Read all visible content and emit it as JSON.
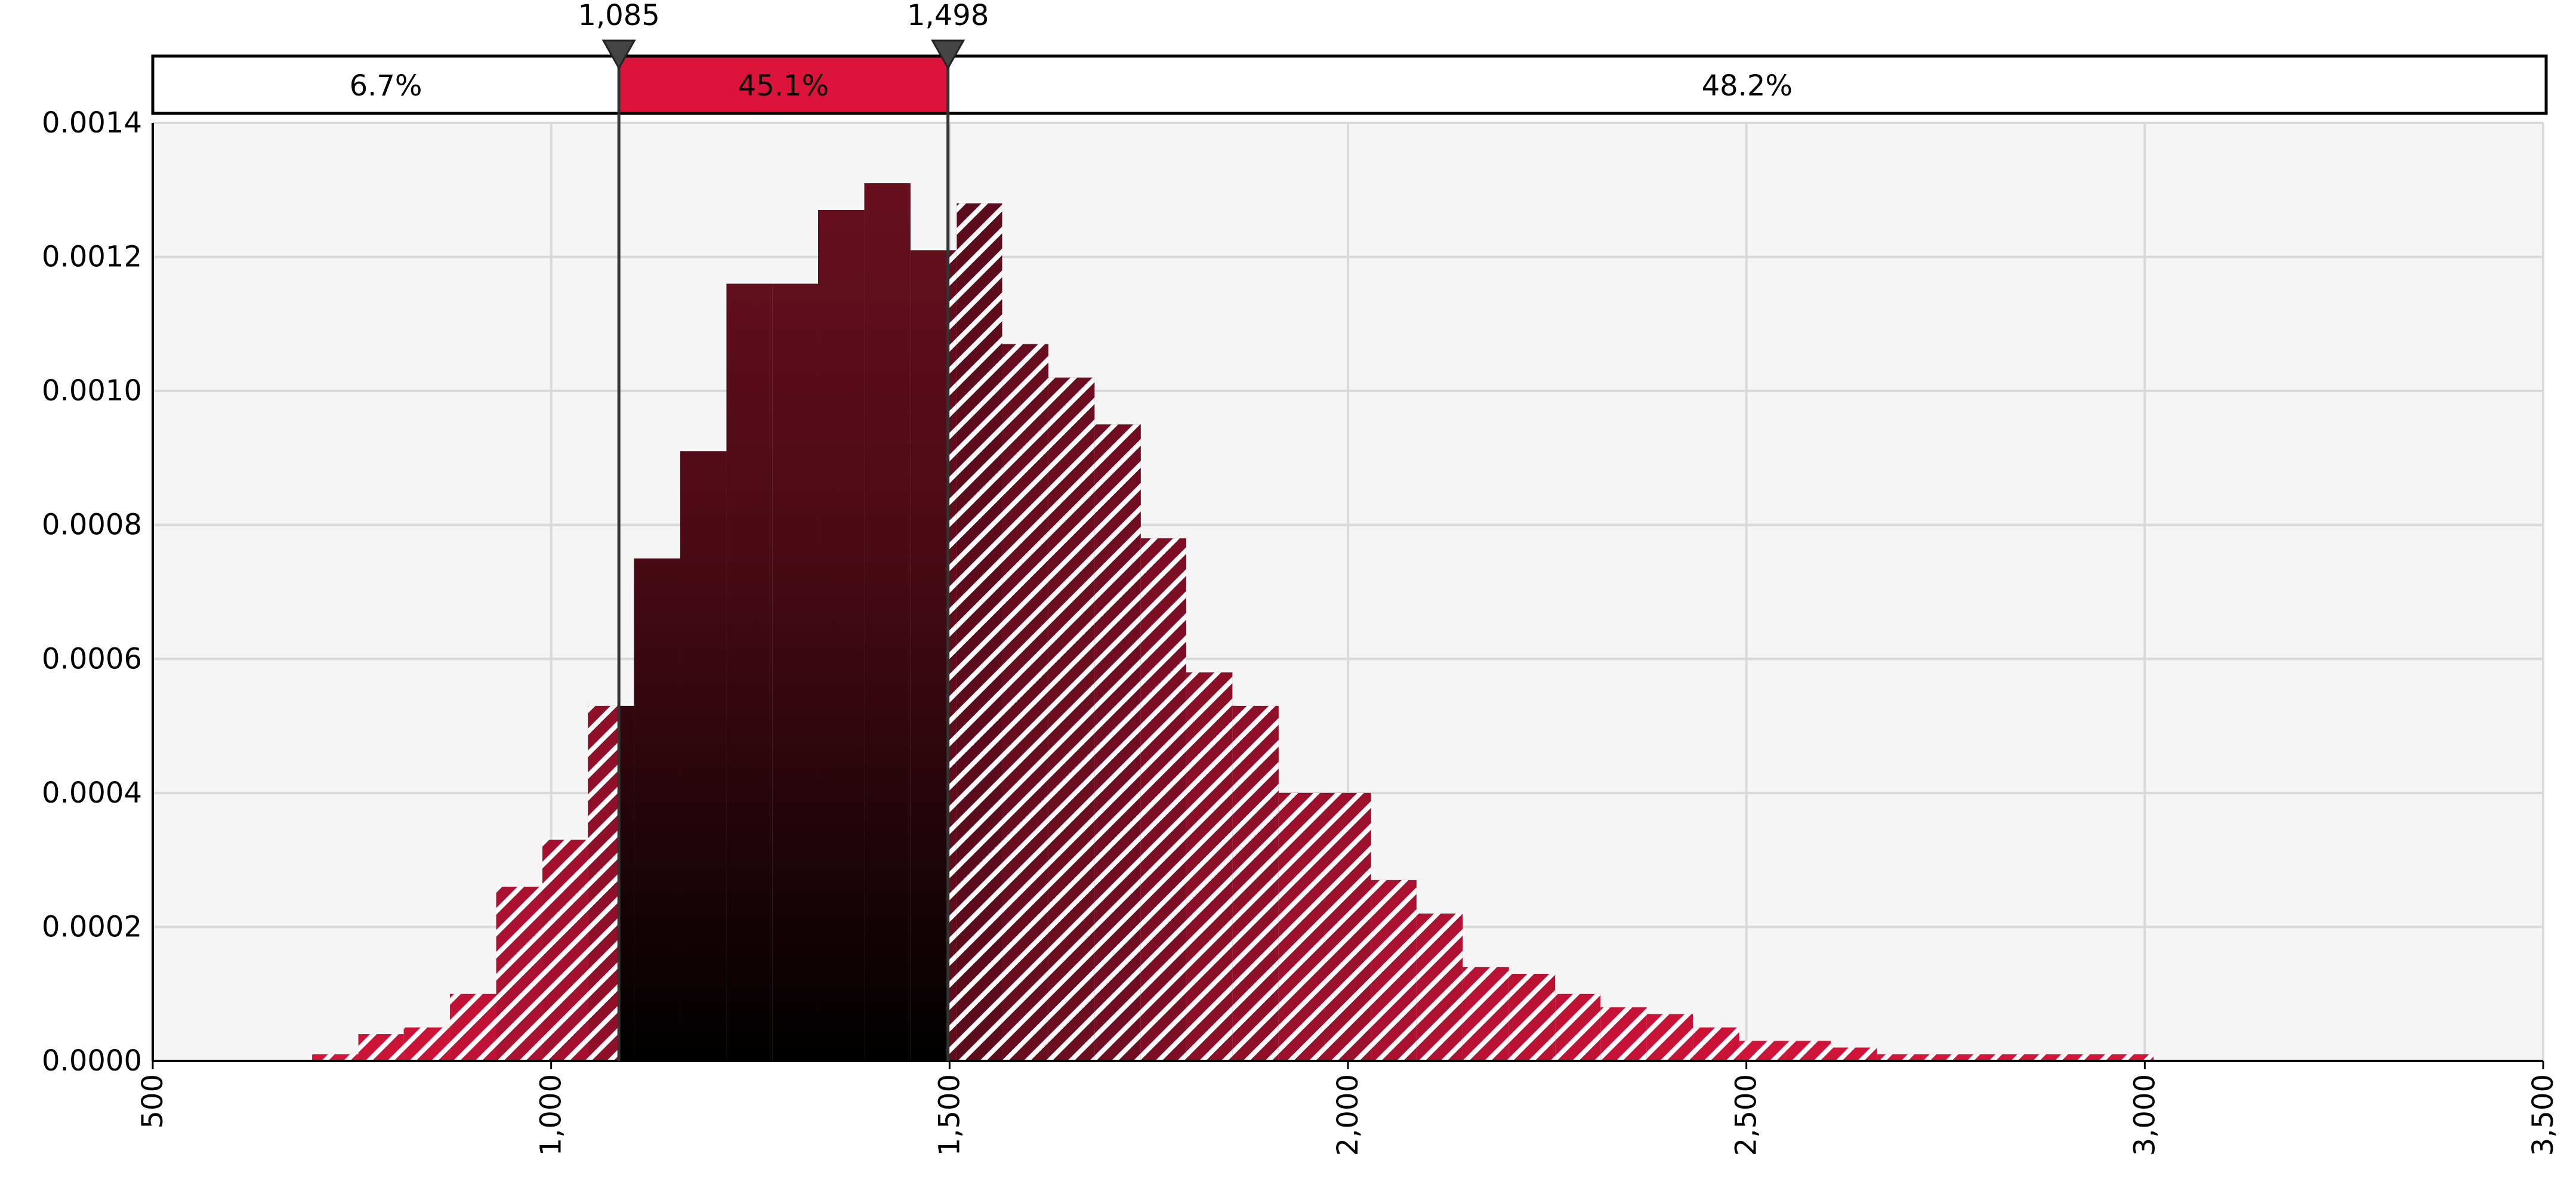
{
  "chart_data": {
    "type": "histogram",
    "bins": [
      700,
      758,
      815,
      873,
      931,
      989,
      1046,
      1104,
      1162,
      1220,
      1278,
      1335,
      1393,
      1451,
      1509,
      1566,
      1624,
      1682,
      1740,
      1797,
      1855,
      1913,
      1971,
      2029,
      2086,
      2144,
      2202,
      2260,
      2317,
      2375,
      2433,
      2491,
      2549,
      2606,
      2664,
      2722,
      2780,
      2838,
      2895,
      2953,
      3011
    ],
    "values": [
      1e-05,
      4e-05,
      5e-05,
      0.0001,
      0.00026,
      0.00033,
      0.00053,
      0.00075,
      0.00091,
      0.00116,
      0.00116,
      0.00127,
      0.00131,
      0.00121,
      0.00128,
      0.00107,
      0.00102,
      0.00095,
      0.00078,
      0.00058,
      0.00053,
      0.0004,
      0.0004,
      0.00027,
      0.00022,
      0.00014,
      0.00013,
      0.0001,
      8e-05,
      7e-05,
      5e-05,
      3e-05,
      3e-05,
      2e-05,
      1e-05,
      1e-05,
      1e-05,
      1e-05,
      1e-05,
      1e-05
    ],
    "xlim": [
      500,
      3500
    ],
    "xticks": [
      500,
      {
        "value": 1000,
        "label": "1,000"
      },
      {
        "value": 1500,
        "label": "1,500"
      },
      {
        "value": 2000,
        "label": "2,000"
      },
      {
        "value": 2500,
        "label": "2,500"
      },
      {
        "value": 3000,
        "label": "3,000"
      },
      {
        "value": 3500,
        "label": "3,500"
      }
    ],
    "ylim": [
      0,
      0.0014
    ],
    "yticks": [
      {
        "value": 0,
        "label": "0.0000"
      },
      {
        "value": 0.0002,
        "label": "0.0002"
      },
      {
        "value": 0.0004,
        "label": "0.0004"
      },
      {
        "value": 0.0006,
        "label": "0.0006"
      },
      {
        "value": 0.0008,
        "label": "0.0008"
      },
      {
        "value": 0.001,
        "label": "0.0010"
      },
      {
        "value": 0.0012,
        "label": "0.0012"
      },
      {
        "value": 0.0014,
        "label": "0.0014"
      }
    ],
    "grid": true,
    "color": "#dc143c",
    "dark_color": "#5a0c1c",
    "markers": {
      "values": [
        1085,
        1498
      ],
      "value_labels": [
        "1,085",
        "1,498"
      ]
    },
    "regions": {
      "values": [
        6.7,
        45.1,
        48.2
      ],
      "value_labels": [
        "6.7%",
        "45.1%",
        "48.2%"
      ]
    }
  }
}
